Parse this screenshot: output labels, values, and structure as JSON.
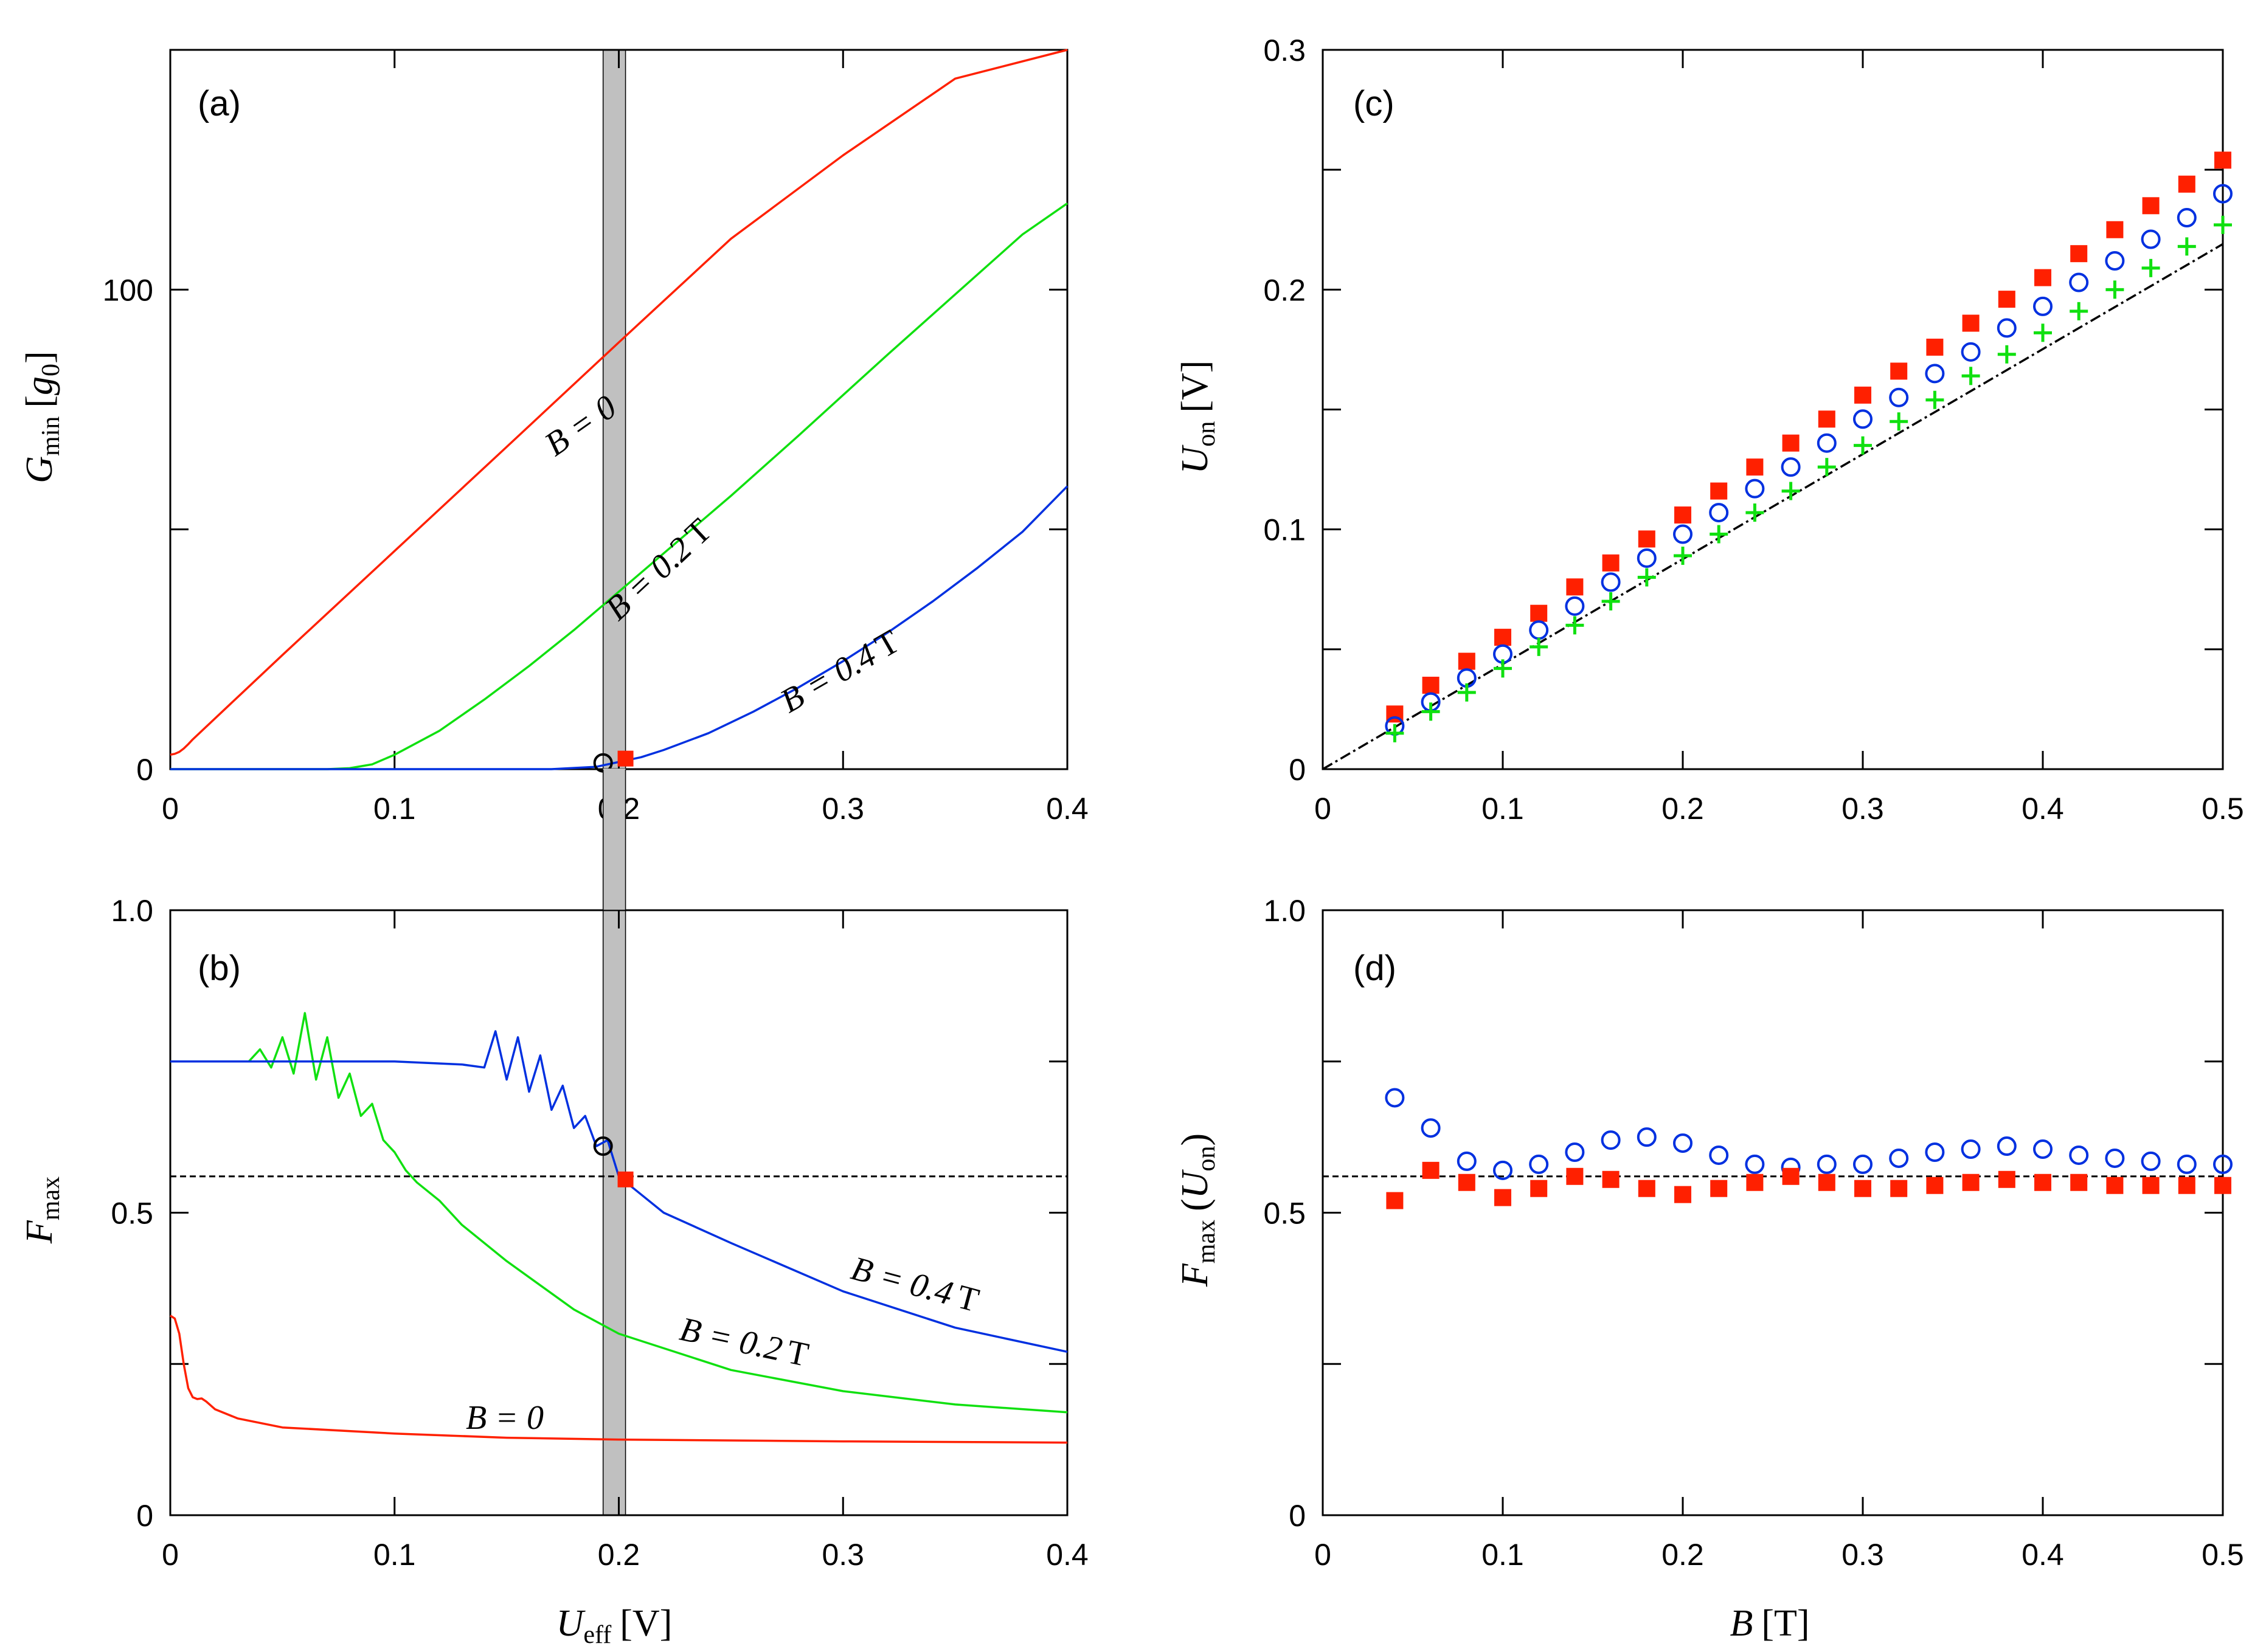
{
  "chart_data": [
    {
      "panel": "(a)",
      "type": "line",
      "xlim": [
        0,
        0.4
      ],
      "ylim": [
        0,
        150
      ],
      "xticks": [
        "0",
        "0.1",
        "0.2",
        "0.3",
        "0.4"
      ],
      "yticks": [
        "0",
        "100"
      ],
      "ylabel": {
        "sym": "G",
        "sub": "min",
        "unit": "g",
        "unit_sub": "0"
      },
      "series": [
        {
          "name": "B = 0",
          "label_main": "B = 0",
          "label_unit": "",
          "color": "#ff2000",
          "x": [
            0,
            0.002,
            0.004,
            0.006,
            0.008,
            0.01,
            0.05,
            0.1,
            0.15,
            0.2,
            0.25,
            0.3,
            0.35,
            0.4
          ],
          "y": [
            3.0,
            3.2,
            3.6,
            4.3,
            5.2,
            6.2,
            23.8,
            45.5,
            67.2,
            89.0,
            110.6,
            128.0,
            144.0,
            150.0
          ]
        },
        {
          "name": "B = 0.2 T",
          "label_main": "B = 0.2",
          "label_unit": "T",
          "color": "#10e010",
          "x": [
            0,
            0.07,
            0.08,
            0.09,
            0.1,
            0.12,
            0.14,
            0.16,
            0.18,
            0.2,
            0.22,
            0.25,
            0.28,
            0.3,
            0.32,
            0.35,
            0.38,
            0.4
          ],
          "y": [
            0,
            0,
            0.2,
            1.0,
            3.0,
            8.0,
            14.5,
            21.5,
            29.0,
            37.0,
            45.0,
            57.0,
            69.5,
            78.0,
            86.5,
            99.0,
            111.5,
            118.0
          ]
        },
        {
          "name": "B = 0.4 T",
          "label_main": "B = 0.4",
          "label_unit": "T",
          "color": "#0030e0",
          "x": [
            0,
            0.17,
            0.19,
            0.2,
            0.21,
            0.22,
            0.24,
            0.26,
            0.28,
            0.3,
            0.32,
            0.34,
            0.36,
            0.38,
            0.4
          ],
          "y": [
            0,
            0,
            0.5,
            1.5,
            2.5,
            4.0,
            7.5,
            12.0,
            17.0,
            22.5,
            28.5,
            35.0,
            42.0,
            49.5,
            59.0
          ]
        }
      ],
      "markers": [
        {
          "type": "circle",
          "x": 0.193,
          "y": 1.3,
          "color": "#000000"
        },
        {
          "type": "square",
          "x": 0.203,
          "y": 2.2,
          "color": "#ff2000"
        }
      ],
      "band": [
        0.193,
        0.203
      ]
    },
    {
      "panel": "(b)",
      "type": "line",
      "xlim": [
        0,
        0.4
      ],
      "ylim": [
        0,
        1
      ],
      "xticks": [
        "0",
        "0.1",
        "0.2",
        "0.3",
        "0.4"
      ],
      "yticks": [
        "0",
        "0.5",
        "1.0"
      ],
      "ylabel": {
        "sym": "F",
        "sub": "max"
      },
      "xlabel": {
        "sym": "U",
        "sub": "eff",
        "unit": "V"
      },
      "hline": 0.56,
      "series": [
        {
          "name": "B = 0",
          "label_main": "B = 0",
          "label_unit": "",
          "color": "#ff2000",
          "x": [
            0,
            0.002,
            0.004,
            0.006,
            0.008,
            0.01,
            0.012,
            0.014,
            0.016,
            0.02,
            0.03,
            0.05,
            0.1,
            0.15,
            0.2,
            0.3,
            0.4
          ],
          "y": [
            0.33,
            0.325,
            0.3,
            0.25,
            0.21,
            0.195,
            0.192,
            0.193,
            0.188,
            0.175,
            0.16,
            0.145,
            0.135,
            0.128,
            0.125,
            0.122,
            0.12
          ]
        },
        {
          "name": "B = 0.2 T",
          "label_main": "B = 0.2",
          "label_unit": "T",
          "color": "#10e010",
          "x": [
            0,
            0.035,
            0.04,
            0.045,
            0.05,
            0.055,
            0.06,
            0.065,
            0.07,
            0.075,
            0.08,
            0.085,
            0.09,
            0.095,
            0.1,
            0.105,
            0.11,
            0.12,
            0.13,
            0.15,
            0.18,
            0.2,
            0.25,
            0.3,
            0.35,
            0.4
          ],
          "y": [
            0.75,
            0.75,
            0.77,
            0.74,
            0.79,
            0.73,
            0.83,
            0.72,
            0.79,
            0.69,
            0.73,
            0.66,
            0.68,
            0.62,
            0.6,
            0.57,
            0.55,
            0.52,
            0.48,
            0.42,
            0.34,
            0.3,
            0.24,
            0.205,
            0.183,
            0.17
          ]
        },
        {
          "name": "B = 0.4 T",
          "label_main": "B = 0.4",
          "label_unit": "T",
          "color": "#0030e0",
          "x": [
            0,
            0.1,
            0.13,
            0.14,
            0.145,
            0.15,
            0.155,
            0.16,
            0.165,
            0.17,
            0.175,
            0.18,
            0.185,
            0.19,
            0.195,
            0.2,
            0.21,
            0.22,
            0.25,
            0.3,
            0.35,
            0.4
          ],
          "y": [
            0.75,
            0.75,
            0.745,
            0.74,
            0.8,
            0.72,
            0.79,
            0.7,
            0.76,
            0.67,
            0.71,
            0.64,
            0.66,
            0.61,
            0.62,
            0.56,
            0.53,
            0.5,
            0.45,
            0.37,
            0.31,
            0.27
          ]
        }
      ],
      "markers": [
        {
          "type": "circle",
          "x": 0.193,
          "y": 0.61,
          "color": "#000000"
        },
        {
          "type": "square",
          "x": 0.203,
          "y": 0.555,
          "color": "#ff2000"
        }
      ],
      "band": [
        0.193,
        0.203
      ]
    },
    {
      "panel": "(c)",
      "type": "scatter",
      "xlim": [
        0,
        0.5
      ],
      "ylim": [
        0,
        0.3
      ],
      "xticks": [
        "0",
        "0.1",
        "0.2",
        "0.3",
        "0.4",
        "0.5"
      ],
      "yticks": [
        "0",
        "0.1",
        "0.2",
        "0.3"
      ],
      "ylabel": {
        "sym": "U",
        "sub": "on",
        "unit": "V"
      },
      "reference_line": {
        "x": [
          0,
          0.5
        ],
        "y": [
          0,
          0.219
        ],
        "style": "dash-dot"
      },
      "series": [
        {
          "name": "squares",
          "marker": "square",
          "color": "#ff2000",
          "x": [
            0.04,
            0.06,
            0.08,
            0.1,
            0.12,
            0.14,
            0.16,
            0.18,
            0.2,
            0.22,
            0.24,
            0.26,
            0.28,
            0.3,
            0.32,
            0.34,
            0.36,
            0.38,
            0.4,
            0.42,
            0.44,
            0.46,
            0.48,
            0.5
          ],
          "y": [
            0.023,
            0.035,
            0.045,
            0.055,
            0.065,
            0.076,
            0.086,
            0.096,
            0.106,
            0.116,
            0.126,
            0.136,
            0.146,
            0.156,
            0.166,
            0.176,
            0.186,
            0.196,
            0.205,
            0.215,
            0.225,
            0.235,
            0.244,
            0.254
          ]
        },
        {
          "name": "circles",
          "marker": "circle",
          "color": "#0030e0",
          "x": [
            0.04,
            0.06,
            0.08,
            0.1,
            0.12,
            0.14,
            0.16,
            0.18,
            0.2,
            0.22,
            0.24,
            0.26,
            0.28,
            0.3,
            0.32,
            0.34,
            0.36,
            0.38,
            0.4,
            0.42,
            0.44,
            0.46,
            0.48,
            0.5
          ],
          "y": [
            0.018,
            0.028,
            0.038,
            0.048,
            0.058,
            0.068,
            0.078,
            0.088,
            0.098,
            0.107,
            0.117,
            0.126,
            0.136,
            0.146,
            0.155,
            0.165,
            0.174,
            0.184,
            0.193,
            0.203,
            0.212,
            0.221,
            0.23,
            0.24
          ]
        },
        {
          "name": "plus",
          "marker": "plus",
          "color": "#10e010",
          "x": [
            0.04,
            0.06,
            0.08,
            0.1,
            0.12,
            0.14,
            0.16,
            0.18,
            0.2,
            0.22,
            0.24,
            0.26,
            0.28,
            0.3,
            0.32,
            0.34,
            0.36,
            0.38,
            0.4,
            0.42,
            0.44,
            0.46,
            0.48,
            0.5
          ],
          "y": [
            0.015,
            0.024,
            0.032,
            0.042,
            0.051,
            0.06,
            0.07,
            0.08,
            0.089,
            0.098,
            0.107,
            0.116,
            0.126,
            0.135,
            0.145,
            0.154,
            0.164,
            0.173,
            0.182,
            0.191,
            0.2,
            0.209,
            0.218,
            0.227
          ]
        }
      ]
    },
    {
      "panel": "(d)",
      "type": "scatter",
      "xlim": [
        0,
        0.5
      ],
      "ylim": [
        0,
        1
      ],
      "xticks": [
        "0",
        "0.1",
        "0.2",
        "0.3",
        "0.4",
        "0.5"
      ],
      "yticks": [
        "0",
        "0.5",
        "1.0"
      ],
      "ylabel": {
        "sym": "F",
        "sub": "max",
        "arg_sym": "U",
        "arg_sub": "on"
      },
      "xlabel": {
        "sym": "B",
        "unit": "T"
      },
      "hline": 0.56,
      "series": [
        {
          "name": "circles",
          "marker": "circle",
          "color": "#0030e0",
          "x": [
            0.04,
            0.06,
            0.08,
            0.1,
            0.12,
            0.14,
            0.16,
            0.18,
            0.2,
            0.22,
            0.24,
            0.26,
            0.28,
            0.3,
            0.32,
            0.34,
            0.36,
            0.38,
            0.4,
            0.42,
            0.44,
            0.46,
            0.48,
            0.5
          ],
          "y": [
            0.69,
            0.64,
            0.585,
            0.57,
            0.58,
            0.6,
            0.62,
            0.625,
            0.615,
            0.595,
            0.58,
            0.575,
            0.58,
            0.58,
            0.59,
            0.6,
            0.605,
            0.61,
            0.605,
            0.595,
            0.59,
            0.585,
            0.58,
            0.58
          ]
        },
        {
          "name": "squares",
          "marker": "square",
          "color": "#ff2000",
          "x": [
            0.04,
            0.06,
            0.08,
            0.1,
            0.12,
            0.14,
            0.16,
            0.18,
            0.2,
            0.22,
            0.24,
            0.26,
            0.28,
            0.3,
            0.32,
            0.34,
            0.36,
            0.38,
            0.4,
            0.42,
            0.44,
            0.46,
            0.48,
            0.5
          ],
          "y": [
            0.52,
            0.57,
            0.55,
            0.525,
            0.54,
            0.56,
            0.555,
            0.54,
            0.53,
            0.54,
            0.55,
            0.56,
            0.55,
            0.54,
            0.54,
            0.545,
            0.55,
            0.555,
            0.55,
            0.55,
            0.545,
            0.545,
            0.545,
            0.545
          ]
        }
      ]
    }
  ]
}
